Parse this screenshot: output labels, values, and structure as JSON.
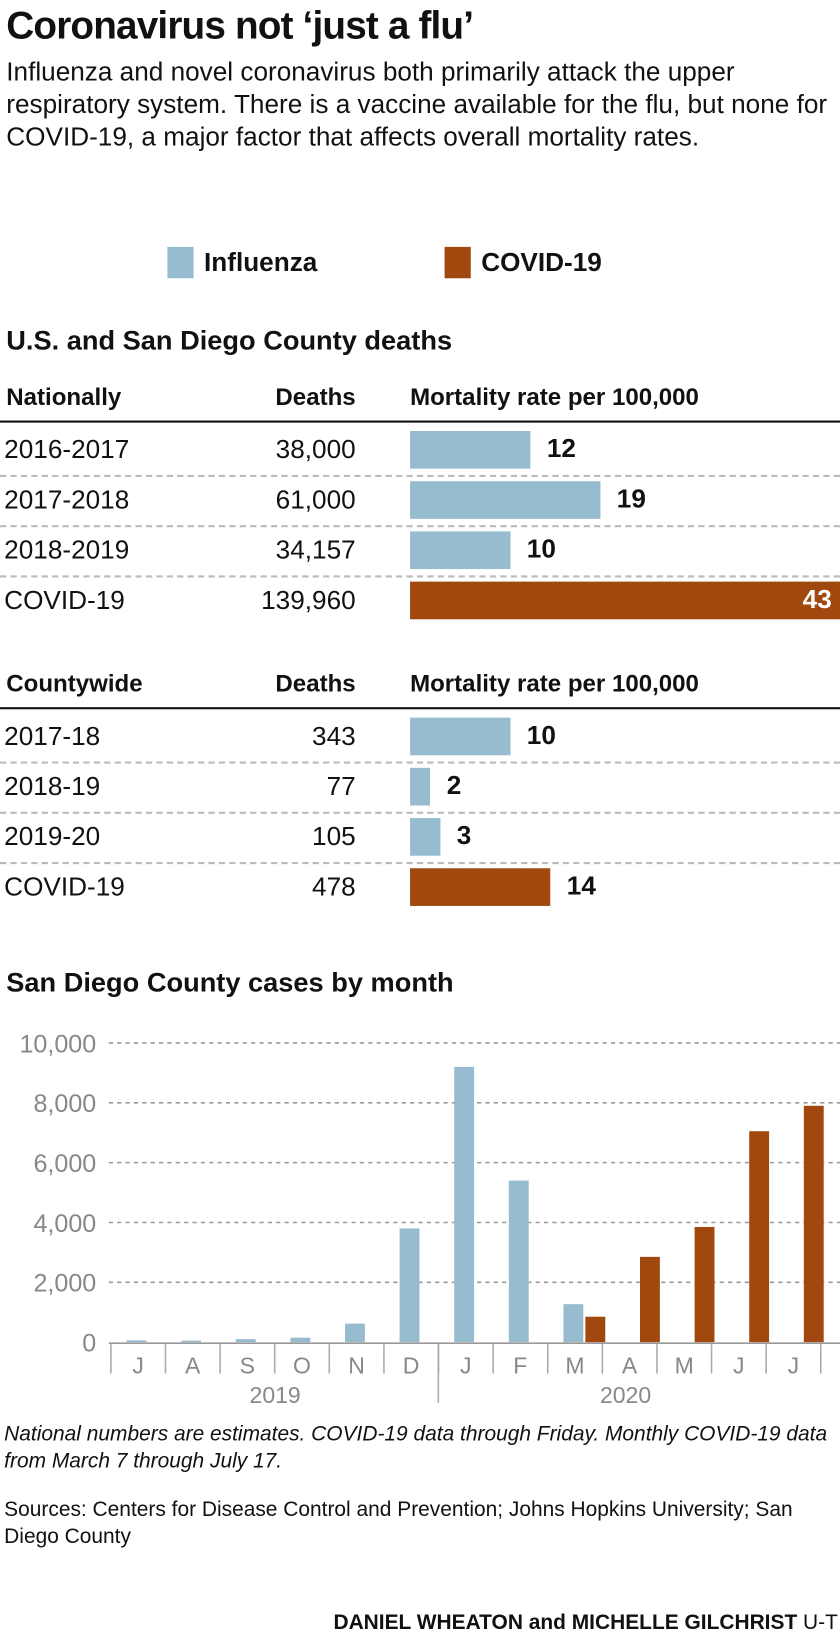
{
  "title": "Coronavirus not ‘just a flu’",
  "description": "Influenza and novel coronavirus both primarily attack the upper respiratory system. There is a vaccine available for the flu, but none for COVID-19, a major factor that affects overall mortality rates.",
  "legend": [
    {
      "label": "Influenza",
      "color": "#97bccf"
    },
    {
      "label": "COVID-19",
      "color": "#a0480e"
    }
  ],
  "deaths_section_title": "U.S. and San Diego County deaths",
  "national": {
    "headers": [
      "Nationally",
      "Deaths",
      "Mortality rate per 100,000"
    ],
    "rows": [
      {
        "label": "2016-2017",
        "deaths": "38,000",
        "rate": 12,
        "rate_label": "12",
        "type": "flu"
      },
      {
        "label": "2017-2018",
        "deaths": "61,000",
        "rate": 19,
        "rate_label": "19",
        "type": "flu"
      },
      {
        "label": "2018-2019",
        "deaths": "34,157",
        "rate": 10,
        "rate_label": "10",
        "type": "flu"
      },
      {
        "label": "COVID-19",
        "deaths": "139,960",
        "rate": 43,
        "rate_label": "43",
        "type": "covid"
      }
    ]
  },
  "county": {
    "headers": [
      "Countywide",
      "Deaths",
      "Mortality rate per 100,000"
    ],
    "rows": [
      {
        "label": "2017-18",
        "deaths": "343",
        "rate": 10,
        "rate_label": "10",
        "type": "flu"
      },
      {
        "label": "2018-19",
        "deaths": "77",
        "rate": 2,
        "rate_label": "2",
        "type": "flu"
      },
      {
        "label": "2019-20",
        "deaths": "105",
        "rate": 3,
        "rate_label": "3",
        "type": "flu"
      },
      {
        "label": "COVID-19",
        "deaths": "478",
        "rate": 14,
        "rate_label": "14",
        "type": "covid"
      }
    ]
  },
  "chart_data": {
    "type": "bar",
    "title": "San Diego County cases by month",
    "categories": [
      "J",
      "A",
      "S",
      "O",
      "N",
      "D",
      "J",
      "F",
      "M",
      "A",
      "M",
      "J",
      "J"
    ],
    "year_labels": [
      "2019",
      "2020"
    ],
    "series": [
      {
        "name": "Influenza",
        "color": "#97bccf",
        "values": [
          60,
          50,
          100,
          150,
          620,
          3800,
          9200,
          5400,
          1270,
          null,
          null,
          null,
          null
        ]
      },
      {
        "name": "COVID-19",
        "color": "#a0480e",
        "values": [
          null,
          null,
          null,
          null,
          null,
          null,
          null,
          null,
          850,
          2850,
          3850,
          7050,
          7900
        ]
      }
    ],
    "ylim": [
      0,
      10000
    ],
    "yticks": [
      "0",
      "2,000",
      "4,000",
      "6,000",
      "8,000",
      "10,000"
    ],
    "grid": true
  },
  "notes": "National numbers are estimates. COVID-19 data through Friday. Monthly COVID-19 data from March 7 through July 17.",
  "sources": "Sources: Centers for Disease Control and Prevention; Johns Hopkins University; San Diego County",
  "byline": {
    "authors": "DANIEL WHEATON and MICHELLE GILCHRIST",
    "org": "U-T"
  }
}
